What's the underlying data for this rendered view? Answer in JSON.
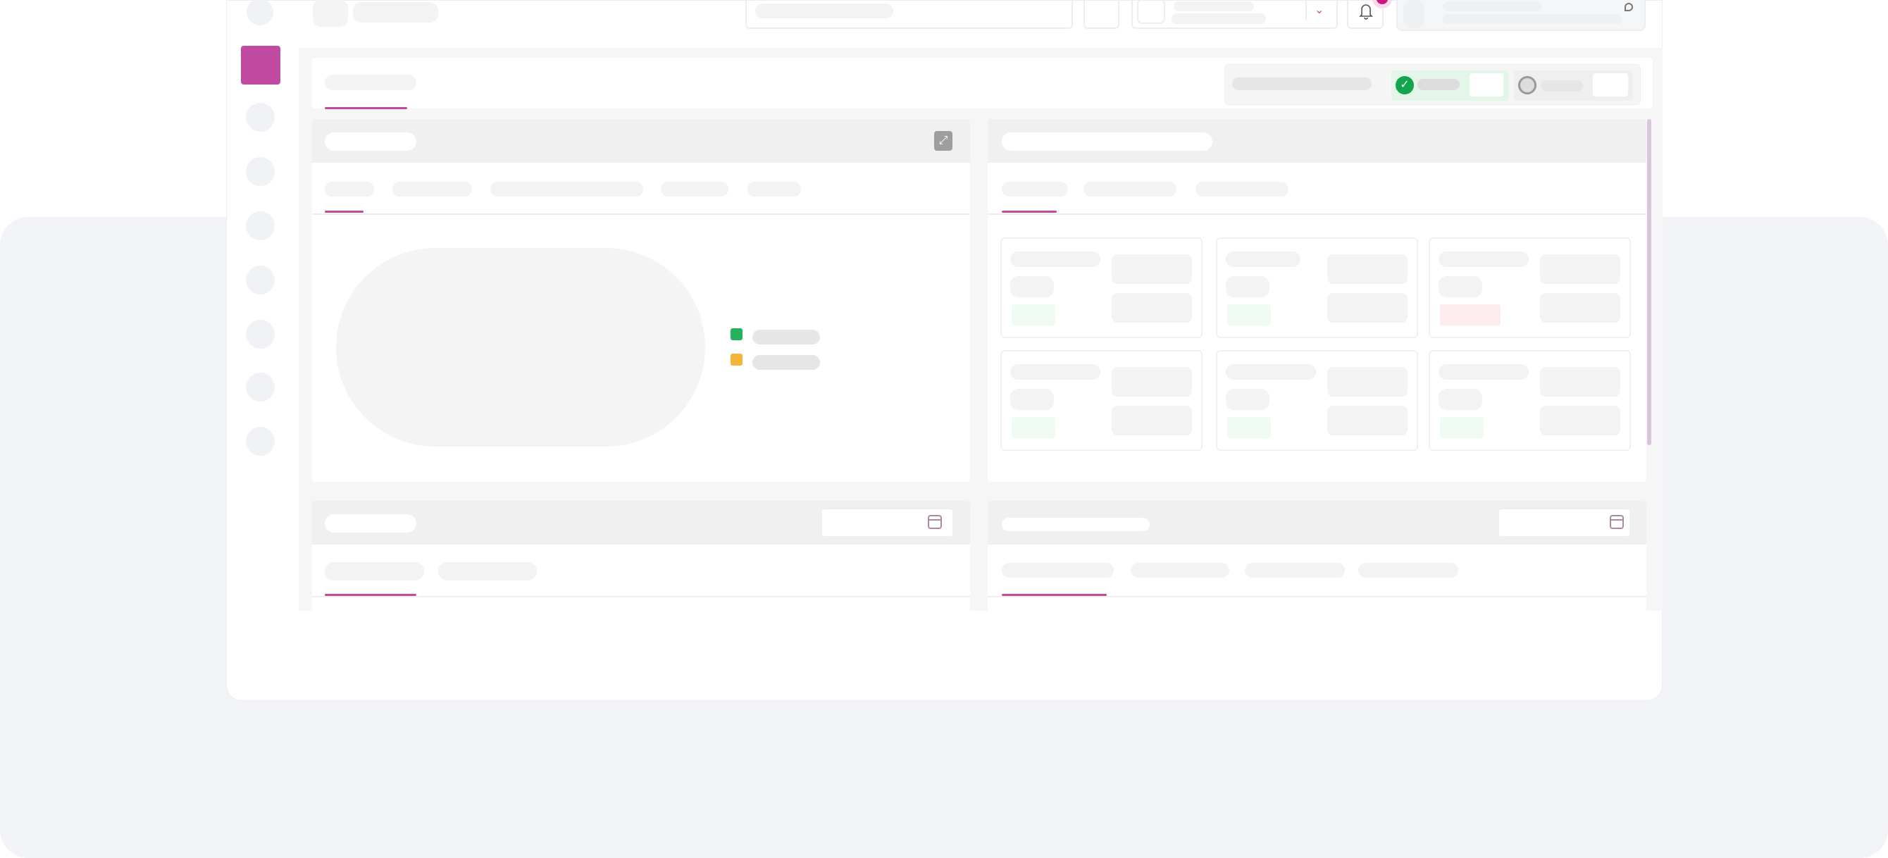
{
  "app": {
    "state": "loading-skeleton"
  },
  "colors": {
    "accent": "#c04ba0",
    "success": "#22b35c",
    "warning": "#f4b63a",
    "page_bg": "#f2f3f7",
    "skeleton": "#f3f3f4"
  },
  "icons": {
    "sidebar_active": "app-square-icon",
    "header_chevron": "chevron-down-icon",
    "notifications": "bell-icon",
    "user_menu": "user-icon",
    "status_ok": "check-circle-icon",
    "status_neutral": "circle-icon",
    "expand": "expand-icon",
    "date_picker": "calendar-icon"
  },
  "legend": [
    {
      "color": "#22b35c"
    },
    {
      "color": "#f4b63a"
    }
  ],
  "stat_cards": [
    {
      "status": "positive"
    },
    {
      "status": "positive"
    },
    {
      "status": "negative"
    },
    {
      "status": "positive"
    },
    {
      "status": "positive"
    },
    {
      "status": "positive"
    }
  ]
}
